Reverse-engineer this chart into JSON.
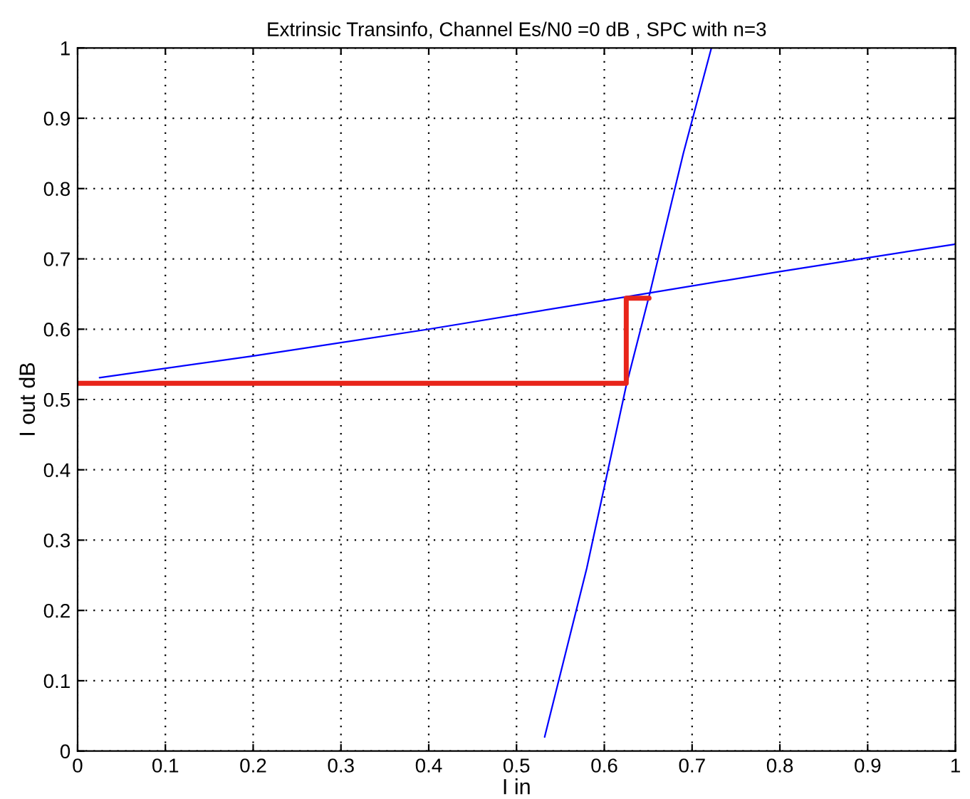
{
  "chart_data": {
    "type": "line",
    "title": "Extrinsic Transinfo, Channel Es/N0 =0 dB , SPC with n=3",
    "xlabel": "I in",
    "ylabel": "I out dB",
    "xlim": [
      0,
      1
    ],
    "ylim": [
      0,
      1
    ],
    "xticks": [
      0,
      0.1,
      0.2,
      0.3,
      0.4,
      0.5,
      0.6,
      0.7,
      0.8,
      0.9,
      1
    ],
    "yticks": [
      0,
      0.1,
      0.2,
      0.3,
      0.4,
      0.5,
      0.6,
      0.7,
      0.8,
      0.9,
      1
    ],
    "grid": true,
    "line_style": "solid",
    "marker": "none",
    "series": [
      {
        "color": "#0000ff",
        "x": [
          0.025,
          0.2,
          0.4,
          0.6,
          0.8,
          1.0
        ],
        "values": [
          0.531,
          0.562,
          0.6,
          0.641,
          0.682,
          0.721
        ]
      },
      {
        "color": "#0000ff",
        "x": [
          0.532,
          0.58,
          0.625,
          0.652,
          0.69,
          0.722
        ],
        "values": [
          0.02,
          0.26,
          0.52,
          0.652,
          0.85,
          1.0
        ]
      },
      {
        "color": "#e8251a",
        "x": [
          0,
          0.625,
          0.625,
          0.651
        ],
        "values": [
          0.523,
          0.523,
          0.644,
          0.644
        ]
      }
    ]
  }
}
